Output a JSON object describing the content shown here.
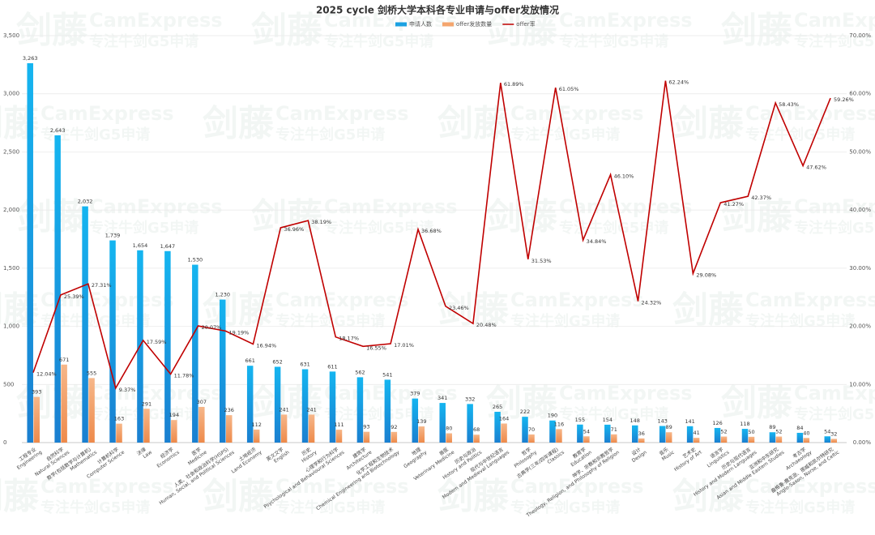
{
  "chart_data": {
    "type": "bar_line",
    "title": "2025 cycle 剑桥大学本科各专业申请与offer发放情况",
    "watermark": [
      "剑藤",
      "CamExpress",
      "专注牛剑G5申请"
    ],
    "category_labels_zh": [
      "工程专业",
      "自然科学",
      "数学(包括数学与计算机)",
      "计算机科学",
      "法律",
      "经济学",
      "医学",
      "人类、社会和政治科学(HSPS)",
      "土地经济",
      "英文文学",
      "历史",
      "心理学和行为科学",
      "建筑学",
      "化学工程和生物技术",
      "地理",
      "兽医",
      "历史与政治",
      "现代与中世纪语言",
      "哲学",
      "古典学(三年/四年课程)",
      "教育学",
      "神学、宗教和宗教哲学",
      "设计",
      "音乐",
      "艺术史",
      "语言学",
      "历史与现代语言",
      "亚洲和中东研究",
      "考古学",
      "盎格鲁-撒克逊、挪威和凯尔特研究"
    ],
    "categories": [
      "Engineering",
      "Natural Sciences",
      "Mathematics",
      "Computer Science",
      "Law",
      "Economics",
      "Medicine",
      "Human, Social, and Political Sciences",
      "Land Economy",
      "English",
      "History",
      "Psychological and Behavioural Sciences",
      "Architecture",
      "Chemical Engineering and Biotechnology",
      "Geography",
      "Veterinary Medicine",
      "History and Politics",
      "Modern and Medieval Languages",
      "Philosophy",
      "Classics",
      "Education",
      "Theology, Religion, and Philosophy of Religion",
      "Design",
      "Music",
      "History of Art",
      "Linguistics",
      "History and Modern Languages",
      "Asian and Middle Eastern Studies",
      "Archaeology",
      "Anglo-Saxon, Norse, and Celtic"
    ],
    "series": [
      {
        "name": "申请人数",
        "type": "bar",
        "color": "#1ba1e2",
        "values": [
          3263,
          2643,
          2032,
          1739,
          1654,
          1647,
          1530,
          1230,
          661,
          652,
          631,
          611,
          562,
          541,
          379,
          341,
          332,
          265,
          222,
          190,
          155,
          154,
          148,
          143,
          141,
          126,
          118,
          89,
          84,
          54
        ],
        "value_labels": [
          "3,263",
          "2,643",
          "2,032",
          "1,739",
          "1,654",
          "1,647",
          "1,530",
          "1,230",
          "661",
          "652",
          "631",
          "611",
          "562",
          "541",
          "379",
          "341",
          "332",
          "265",
          "222",
          "190",
          "155",
          "154",
          "148",
          "143",
          "141",
          "126",
          "118",
          "89",
          "84",
          "54"
        ]
      },
      {
        "name": "offer发放数量",
        "type": "bar",
        "color": "#f4a56e",
        "values": [
          393,
          671,
          555,
          163,
          291,
          194,
          307,
          236,
          112,
          241,
          241,
          111,
          93,
          92,
          139,
          80,
          68,
          164,
          70,
          116,
          54,
          71,
          36,
          89,
          41,
          52,
          50,
          52,
          40,
          32
        ]
      },
      {
        "name": "offer率",
        "type": "line",
        "axis": "y2",
        "color": "#c00000",
        "values": [
          12.04,
          25.39,
          27.31,
          9.37,
          17.59,
          11.78,
          20.07,
          19.19,
          16.94,
          36.96,
          38.19,
          18.17,
          16.55,
          17.01,
          36.68,
          23.46,
          20.48,
          61.89,
          31.53,
          61.05,
          34.84,
          46.1,
          24.32,
          62.24,
          29.08,
          41.27,
          42.37,
          58.43,
          47.62,
          59.26
        ],
        "value_labels": [
          "12.04%",
          "25.39%",
          "27.31%",
          "9.37%",
          "17.59%",
          "11.78%",
          "20.07%",
          "19.19%",
          "16.94%",
          "36.96%",
          "38.19%",
          "18.17%",
          "16.55%",
          "17.01%",
          "36.68%",
          "23.46%",
          "20.48%",
          "61.89%",
          "31.53%",
          "61.05%",
          "34.84%",
          "46.10%",
          "24.32%",
          "62.24%",
          "29.08%",
          "41.27%",
          "42.37%",
          "58.43%",
          "47.62%",
          "59.26%"
        ]
      }
    ],
    "ylim": [
      0,
      3500
    ],
    "yticks": [
      0,
      500,
      {
        "value": 1000,
        "label": "1,000"
      },
      {
        "value": 1500,
        "label": "1,500"
      },
      {
        "value": 2000,
        "label": "2,000"
      },
      {
        "value": 2500,
        "label": "2,500"
      },
      {
        "value": 3000,
        "label": "3,000"
      },
      {
        "value": 3500,
        "label": "3,500"
      }
    ],
    "y2lim": [
      0,
      70
    ],
    "y2ticks": [
      {
        "value": 0,
        "label": "0.00%"
      },
      {
        "value": 10,
        "label": "10.00%"
      },
      {
        "value": 20,
        "label": "20.00%"
      },
      {
        "value": 30,
        "label": "30.00%"
      },
      {
        "value": 40,
        "label": "40.00%"
      },
      {
        "value": 50,
        "label": "50.00%"
      },
      {
        "value": 60,
        "label": "60.00%"
      },
      {
        "value": 70,
        "label": "70.00%"
      }
    ],
    "grid": true,
    "legend": "top"
  }
}
